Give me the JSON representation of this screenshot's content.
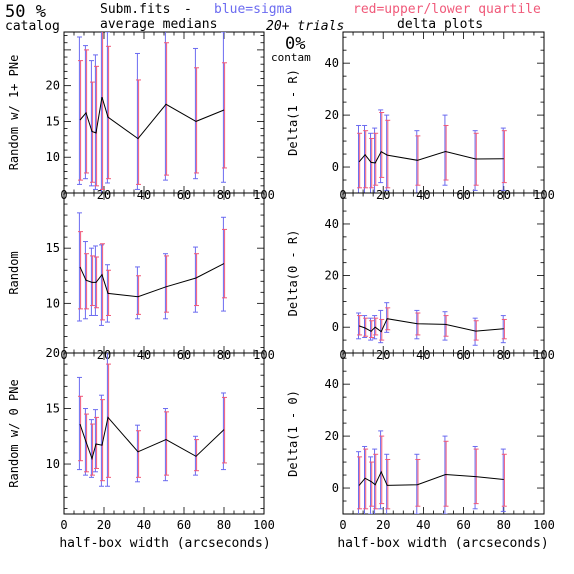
{
  "header": {
    "pct": "50 %",
    "catalog": "catalog",
    "subm": "Subm.fits",
    "dash": "-",
    "avg_medians": "average medians",
    "blue": "blue=sigma",
    "red": "red=upper/lower quartile",
    "trials": "20+ trials",
    "delta_plots": "delta plots",
    "contam_pct": "0%",
    "contam": "contam"
  },
  "colors": {
    "median": "#000000",
    "sigma": "#6b6bf0",
    "quartile": "#f05a7a"
  },
  "x_ticks": [
    "0",
    "20",
    "40",
    "60",
    "80",
    "100"
  ],
  "x_label": "half-box width (arcseconds)",
  "chart_data": [
    {
      "type": "line",
      "id": "left-top",
      "ylabel": "Random w/ 1+ PNe",
      "xlim": [
        0,
        100
      ],
      "ylim": [
        5,
        27.5
      ],
      "yticks": [
        10,
        15,
        20
      ],
      "x": [
        8,
        11,
        14,
        16,
        19,
        22,
        37,
        51,
        66,
        80
      ],
      "median": [
        15.2,
        16.2,
        13.6,
        13.4,
        18.4,
        15.6,
        12.6,
        17.4,
        15.0,
        16.6
      ],
      "sigma": [
        [
          6.2,
          26.8
        ],
        [
          7.0,
          25.6
        ],
        [
          6.0,
          23.5
        ],
        [
          5.5,
          24.3
        ],
        [
          5.0,
          31.0
        ],
        [
          6.4,
          27.5
        ],
        [
          5.5,
          24.5
        ],
        [
          6.8,
          29.0
        ],
        [
          7.0,
          25.2
        ],
        [
          6.5,
          27.5
        ]
      ],
      "quartile": [
        [
          6.8,
          23.5
        ],
        [
          7.8,
          25.0
        ],
        [
          6.5,
          20.5
        ],
        [
          6.0,
          22.7
        ],
        [
          5.5,
          28.5
        ],
        [
          7.0,
          25.5
        ],
        [
          6.2,
          20.8
        ],
        [
          7.5,
          26.0
        ],
        [
          7.8,
          22.5
        ],
        [
          8.5,
          23.2
        ]
      ]
    },
    {
      "type": "line",
      "id": "right-top",
      "ylabel": "Delta(1 - R)",
      "xlim": [
        0,
        100
      ],
      "ylim": [
        -10,
        52
      ],
      "yticks": [
        0,
        20,
        40
      ],
      "x": [
        8,
        11,
        14,
        16,
        19,
        22,
        37,
        51,
        66,
        80
      ],
      "median": [
        2.0,
        4.7,
        1.8,
        1.6,
        5.9,
        4.6,
        2.6,
        6.0,
        3.1,
        3.2
      ],
      "sigma": [
        [
          -14,
          16
        ],
        [
          -11,
          16
        ],
        [
          -12,
          13
        ],
        [
          -10,
          15
        ],
        [
          -6,
          22
        ],
        [
          -9,
          20
        ],
        [
          -11,
          14
        ],
        [
          -7,
          20
        ],
        [
          -9,
          14
        ],
        [
          -9,
          15
        ]
      ],
      "quartile": [
        [
          -8,
          13
        ],
        [
          -8,
          14
        ],
        [
          -8,
          11
        ],
        [
          -7,
          13
        ],
        [
          -4,
          21
        ],
        [
          -8,
          18
        ],
        [
          -7,
          12
        ],
        [
          -5,
          16
        ],
        [
          -7,
          13
        ],
        [
          -6,
          14
        ]
      ]
    },
    {
      "type": "line",
      "id": "left-mid",
      "ylabel": "Random",
      "xlim": [
        0,
        100
      ],
      "ylim": [
        5.5,
        20
      ],
      "yticks": [
        10,
        15
      ],
      "x": [
        8,
        11,
        14,
        16,
        19,
        22,
        37,
        51,
        66,
        80
      ],
      "median": [
        13.3,
        12.1,
        11.9,
        11.9,
        12.6,
        10.9,
        10.6,
        11.5,
        12.3,
        13.6
      ],
      "sigma": [
        [
          8.4,
          18.2
        ],
        [
          8.6,
          15.6
        ],
        [
          8.9,
          15.0
        ],
        [
          8.9,
          15.2
        ],
        [
          8.0,
          15.3
        ],
        [
          8.3,
          13.5
        ],
        [
          8.6,
          13.3
        ],
        [
          8.6,
          14.5
        ],
        [
          9.2,
          15.1
        ],
        [
          9.3,
          17.8
        ]
      ],
      "quartile": [
        [
          9.5,
          16.5
        ],
        [
          9.5,
          14.5
        ],
        [
          9.8,
          14.3
        ],
        [
          9.6,
          14.2
        ],
        [
          8.5,
          15.4
        ],
        [
          8.9,
          13.0
        ],
        [
          9.0,
          12.5
        ],
        [
          9.2,
          14.3
        ],
        [
          9.8,
          14.5
        ],
        [
          10.5,
          16.7
        ]
      ]
    },
    {
      "type": "line",
      "id": "right-mid",
      "ylabel": "Delta(0 - R)",
      "xlim": [
        0,
        100
      ],
      "ylim": [
        -10,
        52
      ],
      "yticks": [
        0,
        20,
        40
      ],
      "x": [
        8,
        11,
        14,
        16,
        19,
        22,
        37,
        51,
        66,
        80
      ],
      "median": [
        0.5,
        -0.3,
        -1.6,
        0.0,
        -1.7,
        3.3,
        1.3,
        1.1,
        -1.5,
        -0.6
      ],
      "sigma": [
        [
          -4.5,
          5.5
        ],
        [
          -4.0,
          4.5
        ],
        [
          -5.0,
          3.5
        ],
        [
          -4.5,
          4.5
        ],
        [
          -6.0,
          6.5
        ],
        [
          -2.0,
          9.5
        ],
        [
          -4.5,
          6.5
        ],
        [
          -5.0,
          6.0
        ],
        [
          -7.0,
          3.5
        ],
        [
          -6.0,
          4.5
        ]
      ],
      "quartile": [
        [
          -3.0,
          4.5
        ],
        [
          -3.5,
          3.5
        ],
        [
          -4.0,
          2.5
        ],
        [
          -3.0,
          3.5
        ],
        [
          -5.0,
          3.0
        ],
        [
          -1.0,
          7.5
        ],
        [
          -3.0,
          5.5
        ],
        [
          -3.5,
          4.5
        ],
        [
          -5.0,
          2.5
        ],
        [
          -4.5,
          3.0
        ]
      ]
    },
    {
      "type": "line",
      "id": "left-bottom",
      "ylabel": "Random w/ 0 PNe",
      "xlim": [
        0,
        100
      ],
      "ylim": [
        5.5,
        20
      ],
      "yticks": [
        10,
        15,
        20
      ],
      "x": [
        8,
        11,
        14,
        16,
        19,
        22,
        37,
        51,
        66,
        80
      ],
      "median": [
        13.6,
        12.0,
        10.5,
        11.8,
        11.7,
        14.2,
        11.1,
        12.2,
        10.7,
        13.1
      ],
      "sigma": [
        [
          9.5,
          17.8
        ],
        [
          9.0,
          15.0
        ],
        [
          8.8,
          14.0
        ],
        [
          9.3,
          14.9
        ],
        [
          8.0,
          16.2
        ],
        [
          8.0,
          21.0
        ],
        [
          8.4,
          13.5
        ],
        [
          8.5,
          15.0
        ],
        [
          9.0,
          12.5
        ],
        [
          9.5,
          16.4
        ]
      ],
      "quartile": [
        [
          10.3,
          16.1
        ],
        [
          9.3,
          14.5
        ],
        [
          9.0,
          13.6
        ],
        [
          9.6,
          14.2
        ],
        [
          8.5,
          15.8
        ],
        [
          8.8,
          19.0
        ],
        [
          8.8,
          13.0
        ],
        [
          9.0,
          14.7
        ],
        [
          9.4,
          12.2
        ],
        [
          10.1,
          16.0
        ]
      ]
    },
    {
      "type": "line",
      "id": "right-bottom",
      "ylabel": "Delta(1 - 0)",
      "xlim": [
        0,
        100
      ],
      "ylim": [
        -10,
        52
      ],
      "yticks": [
        0,
        20,
        40
      ],
      "x": [
        8,
        11,
        14,
        16,
        19,
        22,
        37,
        51,
        66,
        80
      ],
      "median": [
        1.0,
        3.8,
        2.5,
        1.3,
        6.2,
        1.0,
        1.3,
        5.2,
        4.4,
        3.3
      ],
      "sigma": [
        [
          -12,
          14
        ],
        [
          -12,
          16
        ],
        [
          -10,
          12
        ],
        [
          -11,
          15
        ],
        [
          -8,
          22
        ],
        [
          -11,
          13
        ],
        [
          -10,
          13
        ],
        [
          -10,
          20
        ],
        [
          -8,
          16
        ],
        [
          -9,
          15
        ]
      ],
      "quartile": [
        [
          -8,
          12
        ],
        [
          -8,
          15
        ],
        [
          -7,
          10
        ],
        [
          -8,
          13
        ],
        [
          -6,
          20
        ],
        [
          -8,
          11
        ],
        [
          -7,
          11
        ],
        [
          -7,
          18
        ],
        [
          -6,
          15
        ],
        [
          -7,
          13
        ]
      ]
    }
  ]
}
